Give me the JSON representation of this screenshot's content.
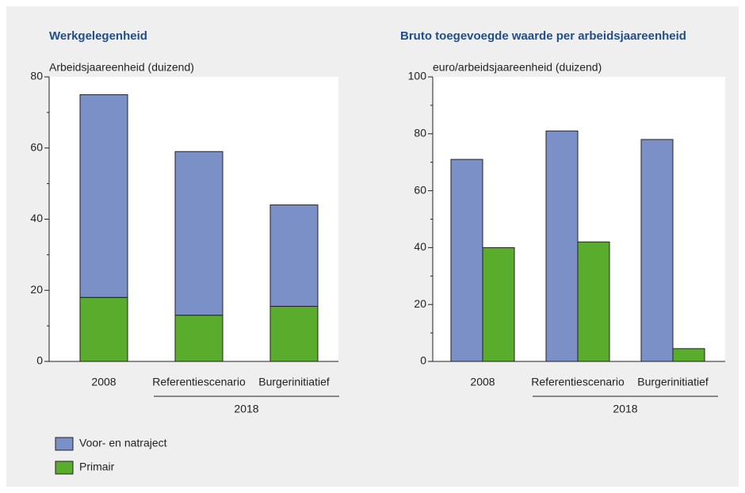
{
  "chart_data": [
    {
      "type": "stacked_bar",
      "title": "Werkgelegenheid",
      "y_label": "Arbeidsjaareenheid (duizend)",
      "categories": [
        "2008",
        "Referentiescenario",
        "Burgerinitiatief"
      ],
      "group_label": "2018",
      "series": [
        {
          "name": "Primair",
          "color": "#5aac2c",
          "values": [
            18,
            13,
            15.5
          ]
        },
        {
          "name": "Voor- en natraject",
          "color": "#7b90c6",
          "values": [
            57,
            46,
            28.5
          ]
        }
      ],
      "ylim": [
        0,
        80
      ],
      "yticks": [
        0,
        20,
        40,
        60,
        80
      ]
    },
    {
      "type": "grouped_bar",
      "title": "Bruto toegevoegde waarde per arbeidsjaareenheid",
      "y_label": "euro/arbeidsjaareenheid (duizend)",
      "categories": [
        "2008",
        "Referentiescenario",
        "Burgerinitiatief"
      ],
      "group_label": "2018",
      "series": [
        {
          "name": "Primair",
          "color": "#5aac2c",
          "values": [
            40,
            42,
            4.5
          ]
        },
        {
          "name": "Voor- en natraject",
          "color": "#7b90c6",
          "values": [
            71,
            81,
            78
          ]
        }
      ],
      "ylim": [
        0,
        100
      ],
      "yticks": [
        0,
        20,
        40,
        60,
        80,
        100
      ]
    }
  ]
}
